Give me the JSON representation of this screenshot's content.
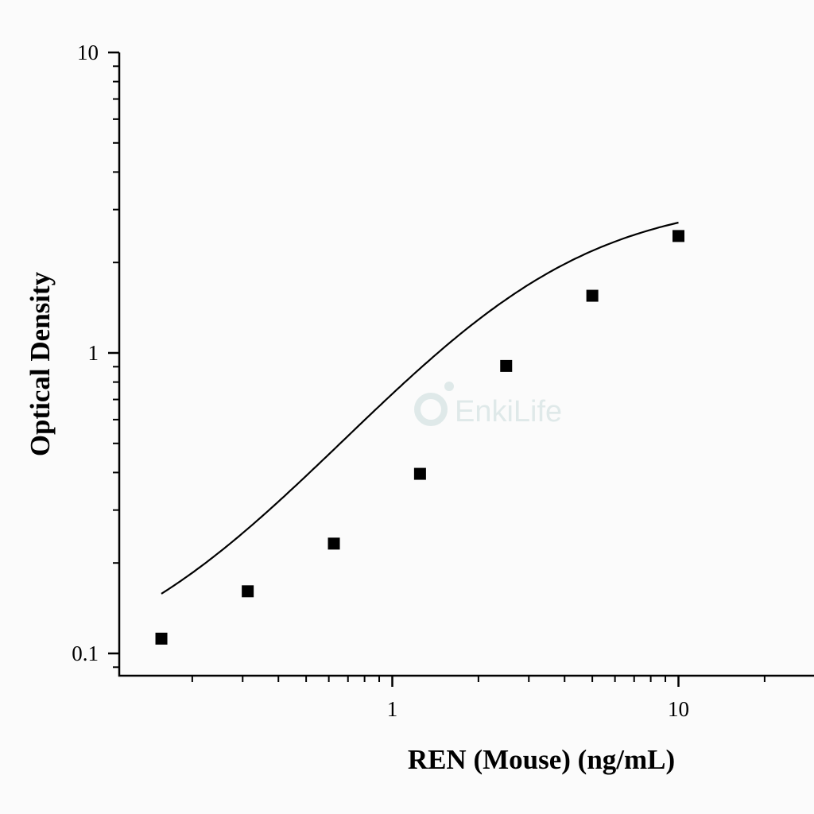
{
  "watermark": "EnkiLife",
  "chart_data": {
    "type": "scatter",
    "title": "",
    "xlabel": "REN (Mouse) (ng/mL)",
    "ylabel": "Optical Density",
    "x_scale": "log",
    "y_scale": "log",
    "xlim": [
      0.1,
      30
    ],
    "ylim": [
      0.08,
      10
    ],
    "x_ticks": [
      {
        "value": 1,
        "label": "1"
      },
      {
        "value": 10,
        "label": "10"
      }
    ],
    "y_ticks": [
      {
        "value": 0.1,
        "label": "0.1"
      },
      {
        "value": 1,
        "label": "1"
      },
      {
        "value": 10,
        "label": "10"
      }
    ],
    "grid": false,
    "legend": "none",
    "series": [
      {
        "marker": "square",
        "color": "#000000",
        "x": [
          0.156,
          0.3125,
          0.625,
          1.25,
          2.5,
          5,
          10
        ],
        "y": [
          0.112,
          0.161,
          0.232,
          0.396,
          0.905,
          1.55,
          2.45
        ]
      }
    ],
    "fit_curve": {
      "type": "4PL",
      "color": "#000000",
      "bottom": 0.08,
      "top": 3.3,
      "ec50": 3.0,
      "hill": 1.25,
      "x_range": [
        0.156,
        10
      ]
    }
  }
}
